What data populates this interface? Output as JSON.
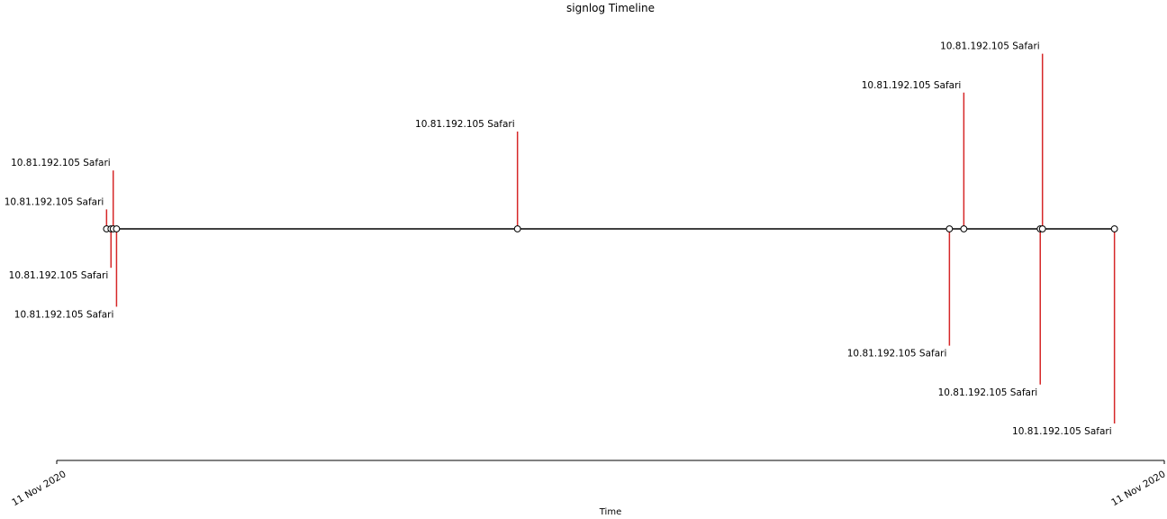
{
  "chart_data": {
    "type": "timeline",
    "title": "signlog Timeline",
    "xlabel": "Time",
    "ylabel": "",
    "xlim": [
      "11 Nov 2020",
      "11 Nov 2020"
    ],
    "tick_labels": [
      "11 Nov 2020",
      "11 Nov 2020"
    ],
    "grid": false,
    "colors": {
      "stem": "#d62728",
      "baseline": "#000000",
      "marker_fill": "#ffffff"
    },
    "events": [
      {
        "t": 0.045,
        "level": 0.2,
        "label": "10.81.192.105 Safari"
      },
      {
        "t": 0.049,
        "level": -0.4,
        "label": "10.81.192.105 Safari"
      },
      {
        "t": 0.051,
        "level": 0.6,
        "label": "10.81.192.105 Safari"
      },
      {
        "t": 0.054,
        "level": -0.8,
        "label": "10.81.192.105 Safari"
      },
      {
        "t": 0.416,
        "level": 1.0,
        "label": "10.81.192.105 Safari"
      },
      {
        "t": 0.806,
        "level": -1.2,
        "label": "10.81.192.105 Safari"
      },
      {
        "t": 0.819,
        "level": 1.4,
        "label": "10.81.192.105 Safari"
      },
      {
        "t": 0.888,
        "level": -1.6,
        "label": "10.81.192.105 Safari"
      },
      {
        "t": 0.89,
        "level": 1.8,
        "label": "10.81.192.105 Safari"
      },
      {
        "t": 0.955,
        "level": -2.0,
        "label": "10.81.192.105 Safari"
      }
    ]
  }
}
